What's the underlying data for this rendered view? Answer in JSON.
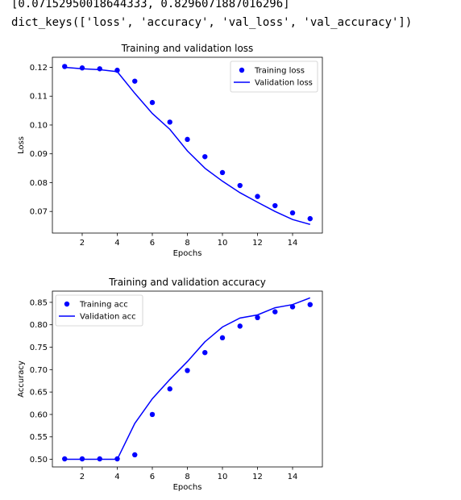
{
  "output": {
    "line1": "[0.07152950018644333, 0.8296071887016296]",
    "line2": "dict_keys(['loss', 'accuracy', 'val_loss', 'val_accuracy'])"
  },
  "colors": {
    "series": "#0000ff",
    "axis": "#000000"
  },
  "chart_data": [
    {
      "type": "line",
      "title": "Training and validation loss",
      "xlabel": "Epochs",
      "ylabel": "Loss",
      "xlim": [
        0.3,
        15.7
      ],
      "ylim": [
        0.0625,
        0.1235
      ],
      "xticks": [
        2,
        4,
        6,
        8,
        10,
        12,
        14
      ],
      "yticks": [
        0.07,
        0.08,
        0.09,
        0.1,
        0.11,
        0.12
      ],
      "ytick_labels": [
        "0.07",
        "0.08",
        "0.09",
        "0.10",
        "0.11",
        "0.12"
      ],
      "legend_position": "top-right",
      "grid": false,
      "x": [
        1,
        2,
        3,
        4,
        5,
        6,
        7,
        8,
        9,
        10,
        11,
        12,
        13,
        14,
        15
      ],
      "series": [
        {
          "name": "Training loss",
          "style": "points",
          "values": [
            0.1203,
            0.1198,
            0.1195,
            0.119,
            0.1152,
            0.1078,
            0.101,
            0.095,
            0.089,
            0.0835,
            0.079,
            0.0752,
            0.072,
            0.0695,
            0.0675
          ]
        },
        {
          "name": "Validation loss",
          "style": "line",
          "values": [
            0.12,
            0.1195,
            0.1192,
            0.1185,
            0.111,
            0.104,
            0.0985,
            0.091,
            0.085,
            0.0805,
            0.0765,
            0.0732,
            0.07,
            0.0672,
            0.0655
          ]
        }
      ]
    },
    {
      "type": "line",
      "title": "Training and validation accuracy",
      "xlabel": "Epochs",
      "ylabel": "Accuracy",
      "xlim": [
        0.3,
        15.7
      ],
      "ylim": [
        0.483,
        0.875
      ],
      "xticks": [
        2,
        4,
        6,
        8,
        10,
        12,
        14
      ],
      "yticks": [
        0.5,
        0.55,
        0.6,
        0.65,
        0.7,
        0.75,
        0.8,
        0.85
      ],
      "ytick_labels": [
        "0.50",
        "0.55",
        "0.60",
        "0.65",
        "0.70",
        "0.75",
        "0.80",
        "0.85"
      ],
      "legend_position": "top-left",
      "grid": false,
      "x": [
        1,
        2,
        3,
        4,
        5,
        6,
        7,
        8,
        9,
        10,
        11,
        12,
        13,
        14,
        15
      ],
      "series": [
        {
          "name": "Training acc",
          "style": "points",
          "values": [
            0.501,
            0.501,
            0.501,
            0.501,
            0.51,
            0.6,
            0.657,
            0.698,
            0.738,
            0.771,
            0.797,
            0.816,
            0.829,
            0.84,
            0.845
          ]
        },
        {
          "name": "Validation acc",
          "style": "line",
          "values": [
            0.5,
            0.5,
            0.5,
            0.5,
            0.58,
            0.635,
            0.678,
            0.718,
            0.762,
            0.795,
            0.815,
            0.822,
            0.838,
            0.845,
            0.86
          ]
        }
      ]
    }
  ]
}
